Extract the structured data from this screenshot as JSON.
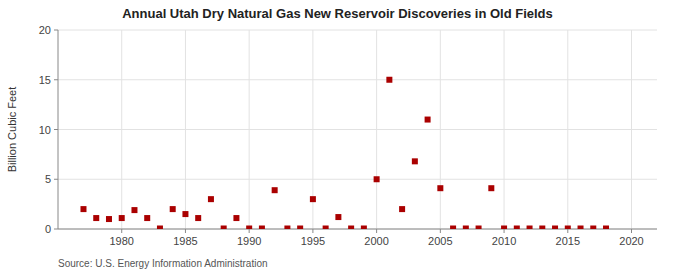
{
  "chart_data": {
    "type": "scatter",
    "title": "Annual Utah Dry Natural Gas New Reservoir Discoveries in Old Fields",
    "ylabel": "Billion Cubic Feet",
    "source": "Source: U.S. Energy Information Administration",
    "color": "#aa0000",
    "marker": "square",
    "grid": true,
    "xlim": [
      1975,
      2022
    ],
    "ylim": [
      0,
      20
    ],
    "xticks": [
      1980,
      1985,
      1990,
      1995,
      2000,
      2005,
      2010,
      2015,
      2020
    ],
    "yticks": [
      0,
      5,
      10,
      15,
      20
    ],
    "x": [
      1977,
      1978,
      1979,
      1980,
      1981,
      1982,
      1983,
      1984,
      1985,
      1986,
      1987,
      1988,
      1989,
      1990,
      1991,
      1992,
      1993,
      1994,
      1995,
      1996,
      1997,
      1998,
      1999,
      2000,
      2001,
      2002,
      2003,
      2004,
      2005,
      2006,
      2007,
      2008,
      2009,
      2010,
      2011,
      2012,
      2013,
      2014,
      2015,
      2016,
      2017,
      2018
    ],
    "values": [
      2.0,
      1.1,
      1.0,
      1.1,
      1.9,
      1.1,
      0.05,
      2.0,
      1.5,
      1.1,
      3.0,
      0.05,
      1.1,
      0.05,
      0.05,
      3.9,
      0.05,
      0.05,
      3.0,
      0.05,
      1.2,
      0.05,
      0.05,
      5.0,
      15.0,
      2.0,
      6.8,
      11.0,
      4.1,
      0.05,
      0.05,
      0.05,
      4.1,
      0.05,
      0.05,
      0.05,
      0.05,
      0.05,
      0.05,
      0.05,
      0.05,
      0.05
    ]
  }
}
